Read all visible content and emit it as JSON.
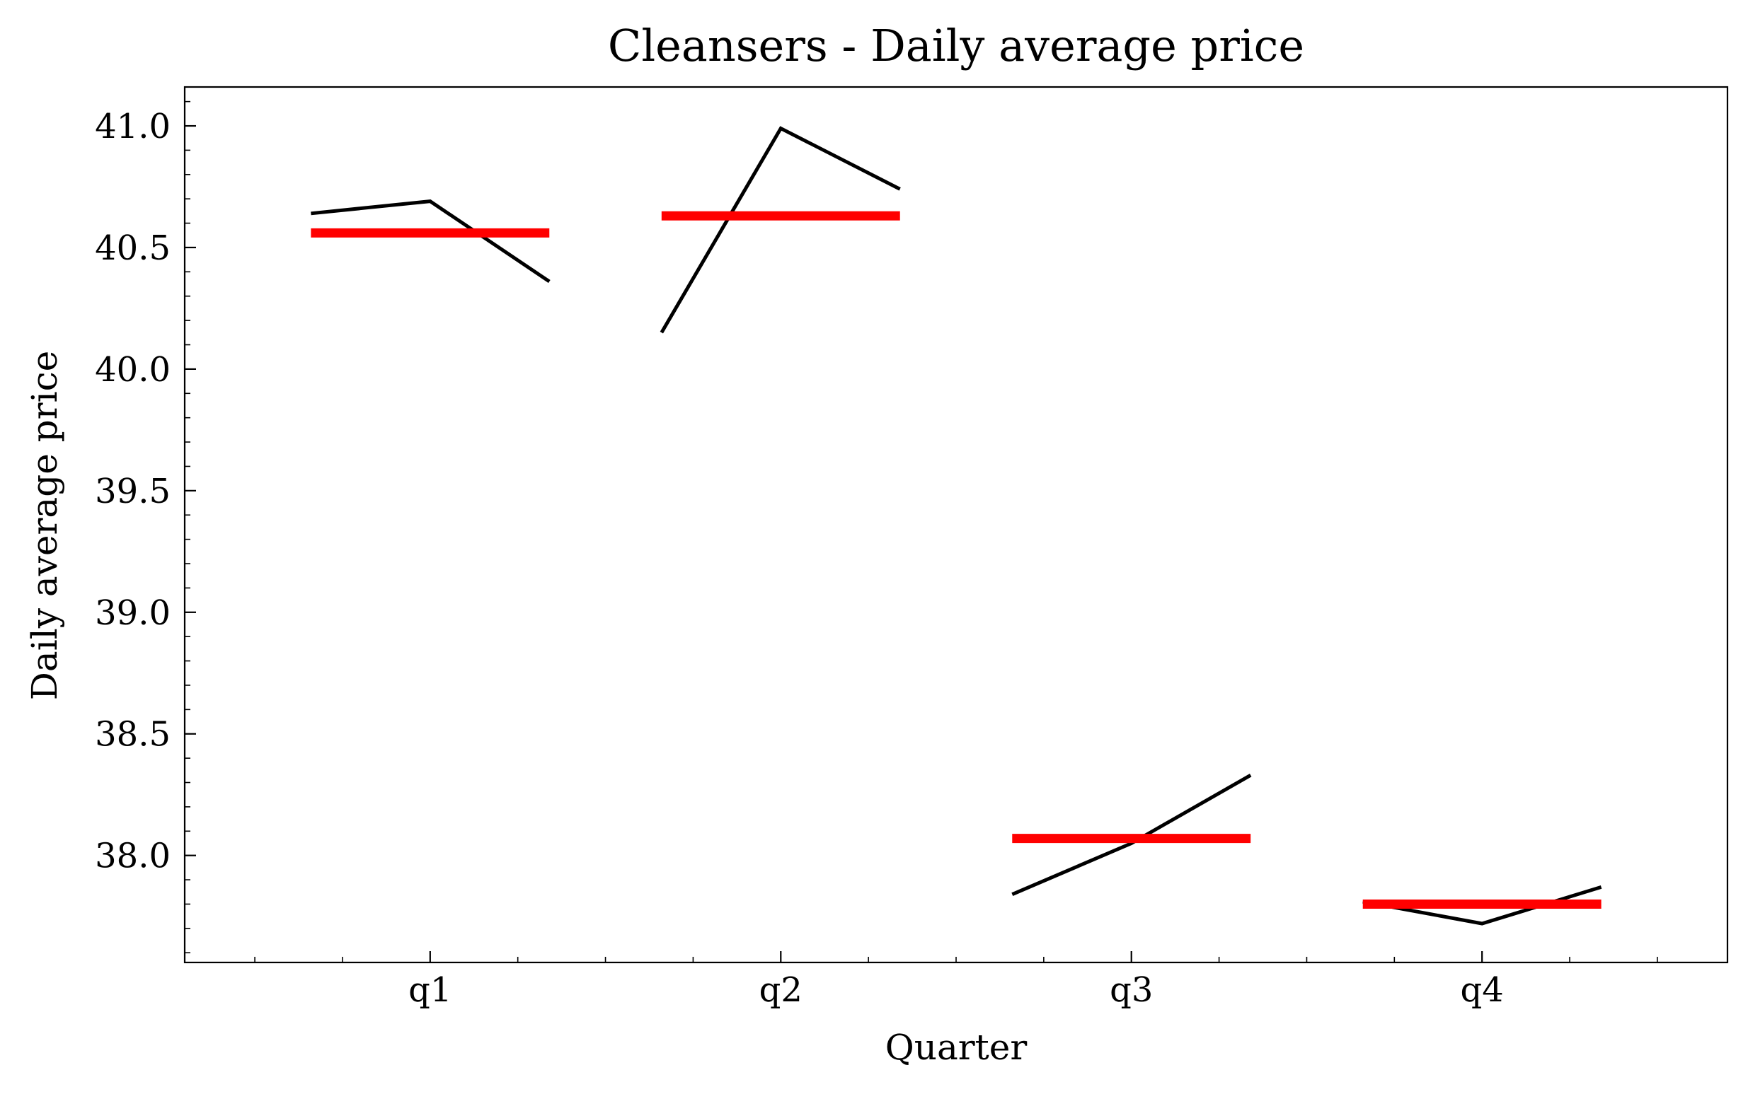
{
  "chart_data": {
    "type": "line",
    "title": "Cleansers - Daily average price",
    "xlabel": "Quarter",
    "ylabel": "Daily average price",
    "categories": [
      "q1",
      "q2",
      "q3",
      "q4"
    ],
    "values": [
      [
        40.64,
        40.69,
        40.36
      ],
      [
        40.15,
        40.99,
        40.74
      ],
      [
        37.84,
        38.05,
        38.33
      ],
      [
        37.81,
        37.72,
        37.87
      ]
    ],
    "means": [
      40.56,
      40.63,
      38.07,
      37.8
    ],
    "line_color": "#000000",
    "mean_color": "#ff0000",
    "ylim": [
      37.56,
      41.16
    ],
    "yticks": [
      {
        "value": 38,
        "label": "38.0"
      },
      38.5,
      {
        "value": 39,
        "label": "39.0"
      },
      39.5,
      {
        "value": 40,
        "label": "40.0"
      },
      40.5,
      {
        "value": 41,
        "label": "41.0"
      }
    ],
    "grid": false
  }
}
